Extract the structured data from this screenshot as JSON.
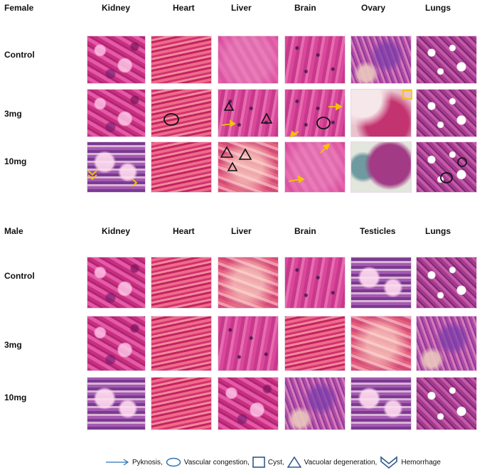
{
  "female": {
    "group_label": "Female",
    "organs": [
      "Kidney",
      "Heart",
      "Liver",
      "Brain",
      "Ovary",
      "Lungs"
    ],
    "doses": [
      "Control",
      "3mg",
      "10mg"
    ]
  },
  "male": {
    "group_label": "Male",
    "organs": [
      "Kidney",
      "Heart",
      "Liver",
      "Brain",
      "Testicles",
      "Lungs"
    ],
    "doses": [
      "Control",
      "3mg",
      "10mg"
    ]
  },
  "legend": {
    "pyknosis": "Pyknosis,",
    "vascular_congestion": "Vascular  congestion,",
    "cyst": "Cyst,",
    "vacuolar_degeneration": "Vacuolar degeneration,",
    "hemorrhage": "Hemorrhage"
  },
  "colors": {
    "arrow_legend": "#2e75b6",
    "arrow_marker": "#f5c400",
    "marker_dark": "#111111"
  }
}
